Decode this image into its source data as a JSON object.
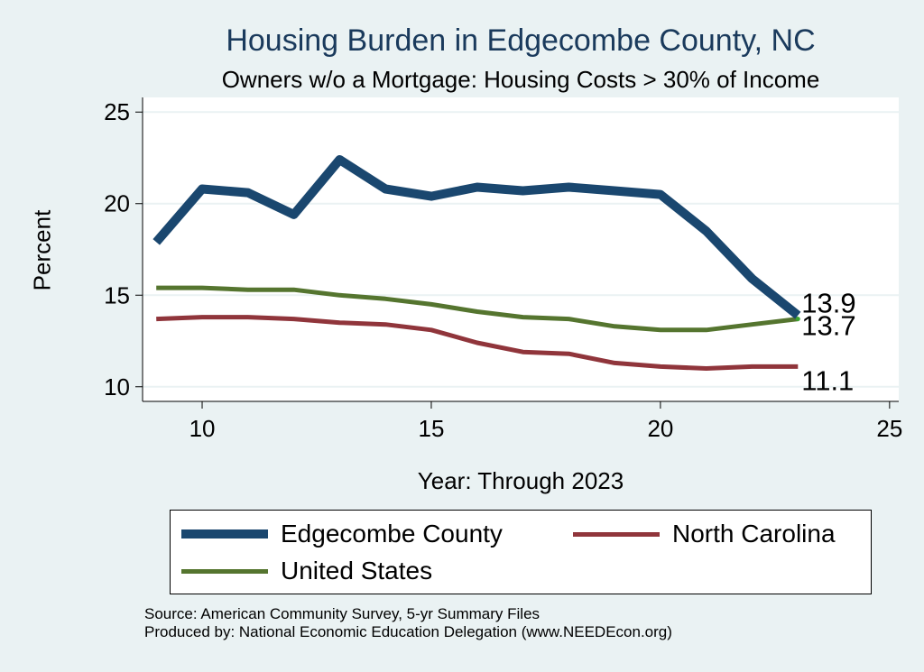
{
  "chart_data": {
    "type": "line",
    "title": "Housing Burden in Edgecombe County, NC",
    "subtitle": "Owners w/o a Mortgage: Housing Costs > 30% of Income",
    "xlabel": "Year: Through 2023",
    "ylabel": "Percent",
    "xlim": [
      8.7,
      25.2
    ],
    "ylim": [
      9.2,
      25.8
    ],
    "xticks": [
      10,
      15,
      20,
      25
    ],
    "yticks": [
      10,
      15,
      20,
      25
    ],
    "grid": "horizontal",
    "legend_position": "bottom",
    "x": [
      9,
      10,
      11,
      12,
      13,
      14,
      15,
      16,
      17,
      18,
      19,
      20,
      21,
      22,
      23
    ],
    "series": [
      {
        "name": "Edgecombe County",
        "color": "#1a476f",
        "values": [
          17.9,
          20.8,
          20.6,
          19.4,
          22.4,
          20.8,
          20.4,
          20.9,
          20.7,
          20.9,
          20.7,
          20.5,
          18.5,
          15.9,
          13.9
        ],
        "end_label": "13.9"
      },
      {
        "name": "North Carolina",
        "color": "#90353b",
        "values": [
          13.7,
          13.8,
          13.8,
          13.7,
          13.5,
          13.4,
          13.1,
          12.4,
          11.9,
          11.8,
          11.3,
          11.1,
          11.0,
          11.1,
          11.1
        ],
        "end_label": "11.1"
      },
      {
        "name": "United States",
        "color": "#55752f",
        "values": [
          15.4,
          15.4,
          15.3,
          15.3,
          15.0,
          14.8,
          14.5,
          14.1,
          13.8,
          13.7,
          13.3,
          13.1,
          13.1,
          13.4,
          13.7
        ],
        "end_label": "13.7"
      }
    ]
  },
  "legend": {
    "items": [
      "Edgecombe County",
      "North Carolina",
      "United States"
    ]
  },
  "source": {
    "line1": "Source: American Community Survey, 5-yr Summary Files",
    "line2": "Produced by: National Economic Education Delegation (www.NEEDEcon.org)"
  }
}
